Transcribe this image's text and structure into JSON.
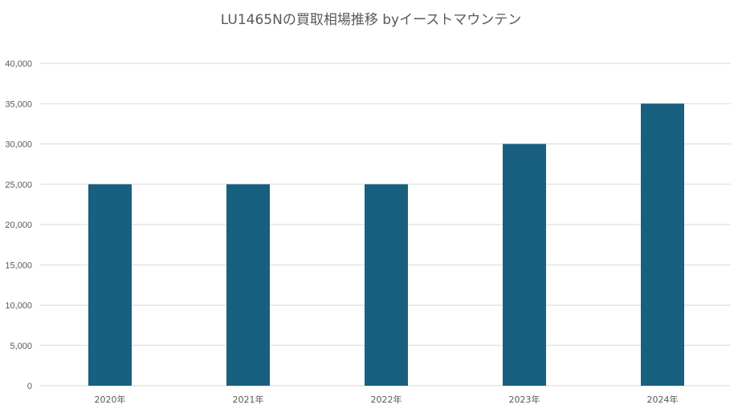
{
  "chart_data": {
    "type": "bar",
    "title": "LU1465Nの買取相場推移 byイーストマウンテン",
    "xlabel": "",
    "ylabel": "",
    "categories": [
      "2020年",
      "2021年",
      "2022年",
      "2023年",
      "2024年"
    ],
    "values": [
      25000,
      25000,
      25000,
      30000,
      35000
    ],
    "ylim": [
      0,
      40000
    ],
    "yticks": [
      0,
      5000,
      10000,
      15000,
      20000,
      25000,
      30000,
      35000,
      40000
    ],
    "ytick_labels": [
      "0",
      "5,000",
      "10,000",
      "15,000",
      "20,000",
      "25,000",
      "30,000",
      "35,000",
      "40,000"
    ],
    "grid": true,
    "legend": "none",
    "bar_color": "#17607f"
  }
}
